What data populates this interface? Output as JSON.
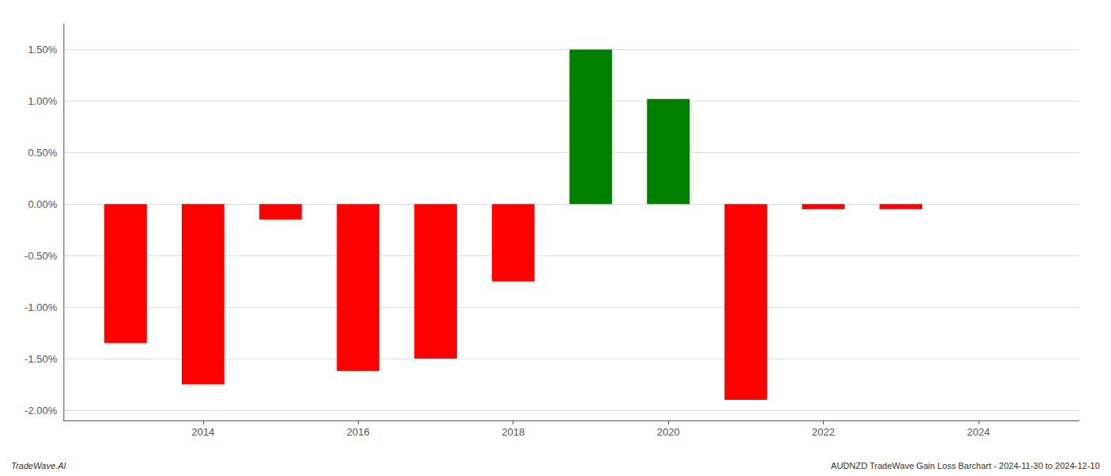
{
  "chart_data": {
    "type": "bar",
    "x": [
      2013,
      2014,
      2015,
      2016,
      2017,
      2018,
      2019,
      2020,
      2021,
      2022,
      2023,
      2024
    ],
    "values": [
      -1.35,
      -1.75,
      -0.15,
      -1.62,
      -1.5,
      -0.75,
      1.5,
      1.02,
      -1.9,
      -0.05,
      -0.05,
      0.0
    ],
    "colors": [
      "#ff0000",
      "#ff0000",
      "#ff0000",
      "#ff0000",
      "#ff0000",
      "#ff0000",
      "#008000",
      "#008000",
      "#ff0000",
      "#ff0000",
      "#ff0000",
      "#008000"
    ],
    "xlim": [
      2012.2,
      2025.3
    ],
    "xticks": [
      2014,
      2016,
      2018,
      2020,
      2022,
      2024
    ],
    "ylim": [
      -2.1,
      1.75
    ],
    "yticks": [
      {
        "value": -2.0,
        "label": "-2.00%"
      },
      {
        "value": -1.5,
        "label": "-1.50%"
      },
      {
        "value": -1.0,
        "label": "-1.00%"
      },
      {
        "value": -0.5,
        "label": "-0.50%"
      },
      {
        "value": 0.0,
        "label": "0.00%"
      },
      {
        "value": 0.5,
        "label": "0.50%"
      },
      {
        "value": 1.0,
        "label": "1.00%"
      },
      {
        "value": 1.5,
        "label": "1.50%"
      }
    ],
    "grid": true,
    "annotations": [
      "TradeWave.AI",
      "AUDNZD TradeWave Gain Loss Barchart - 2024-11-30 to 2024-12-10"
    ]
  }
}
